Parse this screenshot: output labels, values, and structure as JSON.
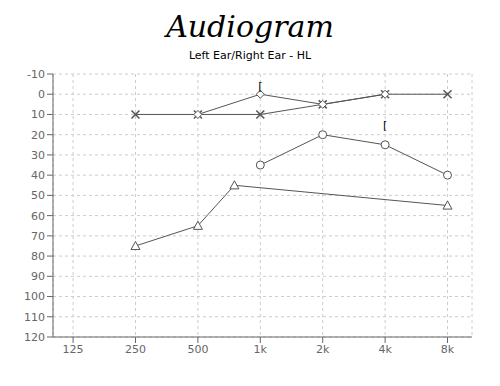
{
  "chart_data": {
    "type": "line",
    "title": "Audiogram",
    "subtitle": "Left Ear/Right Ear - HL",
    "log": "x",
    "grid": true,
    "xlim": [
      100,
      10500
    ],
    "xticks": [
      125,
      250,
      500,
      {
        "value": 1000,
        "label": "1k"
      },
      {
        "value": 2000,
        "label": "2k"
      },
      {
        "value": 4000,
        "label": "4k"
      },
      {
        "value": 8000,
        "label": "8k"
      }
    ],
    "ylim": [
      120,
      -10
    ],
    "yticks": [
      -10,
      0,
      10,
      20,
      30,
      40,
      50,
      60,
      70,
      80,
      90,
      100,
      110,
      120
    ],
    "series": [
      {
        "x": [
          250,
          500,
          1000,
          2000,
          4000,
          8000
        ],
        "values": [
          10,
          10,
          10,
          5,
          0,
          0
        ],
        "marker": "x",
        "color": "#555555"
      },
      {
        "x": [
          500,
          1000,
          2000,
          4000
        ],
        "values": [
          10,
          0,
          5,
          0
        ],
        "marker": "diamond",
        "color": "#555555"
      },
      {
        "x": [
          1000,
          2000,
          4000,
          8000
        ],
        "values": [
          35,
          20,
          25,
          40
        ],
        "marker": "circle",
        "color": "#555555"
      },
      {
        "x": [
          250,
          500,
          750,
          8000
        ],
        "values": [
          75,
          65,
          45,
          55
        ],
        "marker": "triangle",
        "color": "#555555"
      }
    ],
    "annotations": [
      {
        "text": "[",
        "x": 1000,
        "y": -2
      },
      {
        "text": "[",
        "x": 4000,
        "y": 17
      }
    ]
  }
}
